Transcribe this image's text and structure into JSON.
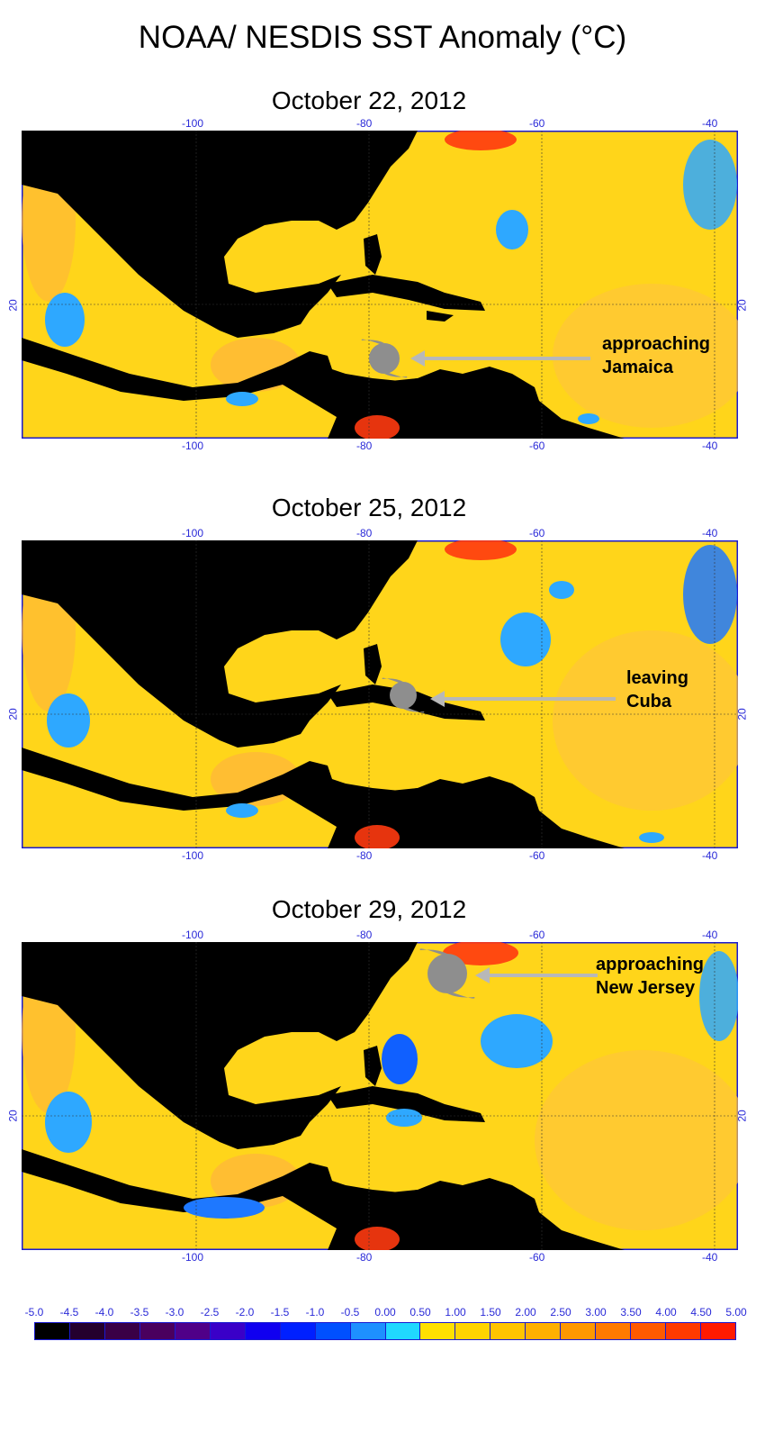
{
  "title": "NOAA/ NESDIS SST Anomaly (°C)",
  "colors": {
    "land": "#000000",
    "ocean_base": "#ffd51a",
    "ocean_warm": "#ffb030",
    "ocean_hot": "#ff3a10",
    "ocean_cool": "#2ea8ff",
    "ocean_cold": "#1060ff",
    "frame": "#1a1ad0",
    "arrow": "#b8b8b8",
    "storm": "#8e8e8e"
  },
  "axes": {
    "lon_ticks": [
      "-100",
      "-80",
      "-60",
      "-40"
    ],
    "lat_ticks": [
      "20"
    ]
  },
  "panels": [
    {
      "date": "October 22, 2012",
      "annotation": [
        "approaching",
        "Jamaica"
      ],
      "storm_icon": "hurricane-icon"
    },
    {
      "date": "October 25, 2012",
      "annotation": [
        "leaving",
        "Cuba"
      ],
      "storm_icon": "hurricane-icon"
    },
    {
      "date": "October 29, 2012",
      "annotation": [
        "approaching",
        "New Jersey"
      ],
      "storm_icon": "hurricane-icon"
    }
  ],
  "colorbar": {
    "labels": [
      "-5.0",
      "-4.5",
      "-4.0",
      "-3.5",
      "-3.0",
      "-2.5",
      "-2.0",
      "-1.5",
      "-1.0",
      "-0.5",
      "0.00",
      "0.50",
      "1.00",
      "1.50",
      "2.00",
      "2.50",
      "3.00",
      "3.50",
      "4.00",
      "4.50",
      "5.00"
    ],
    "colors": [
      "#000000",
      "#24002e",
      "#3a0046",
      "#4a005e",
      "#500088",
      "#3a00c8",
      "#1000f0",
      "#0020ff",
      "#0050ff",
      "#1e90ff",
      "#20d8ff",
      "#ffe000",
      "#ffd400",
      "#ffc400",
      "#ffb000",
      "#ff9800",
      "#ff7a00",
      "#ff5a00",
      "#ff3a00",
      "#ff1a00",
      "#ff0000"
    ]
  }
}
